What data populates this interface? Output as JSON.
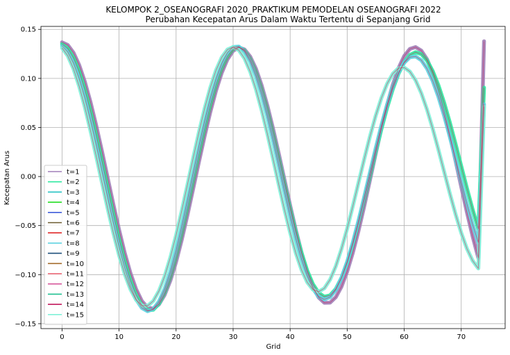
{
  "chart_data": {
    "type": "line",
    "title": "KELOMPOK 2_OSEANOGRAFI 2020_PRAKTIKUM PEMODELAN OSEANOGRAFI 2022",
    "subtitle": "Perubahan Kecepatan Arus Dalam Waktu Tertentu di Sepanjang Grid",
    "xlabel": "Grid",
    "ylabel": "Kecepatan Arus",
    "xlim": [
      -3.7,
      77.7
    ],
    "ylim": [
      -0.155,
      0.153
    ],
    "x_ticks": [
      0,
      10,
      20,
      30,
      40,
      50,
      60,
      70
    ],
    "x_tick_labels": [
      "0",
      "10",
      "20",
      "30",
      "40",
      "50",
      "60",
      "70"
    ],
    "y_ticks": [
      0.15,
      0.1,
      0.05,
      0.0,
      -0.05,
      -0.1,
      -0.15
    ],
    "y_tick_labels": [
      "0.15",
      "0.10",
      "0.05",
      "0.00",
      "−0.05",
      "−0.10",
      "−0.15"
    ],
    "grid": true,
    "legend_position": "lower-left",
    "x": [
      0,
      1,
      2,
      3,
      4,
      5,
      6,
      7,
      8,
      9,
      10,
      11,
      12,
      13,
      14,
      15,
      16,
      17,
      18,
      19,
      20,
      21,
      22,
      23,
      24,
      25,
      26,
      27,
      28,
      29,
      30,
      31,
      32,
      33,
      34,
      35,
      36,
      37,
      38,
      39,
      40,
      41,
      42,
      43,
      44,
      45,
      46,
      47,
      48,
      49,
      50,
      51,
      52,
      53,
      54,
      55,
      56,
      57,
      58,
      59,
      60,
      61,
      62,
      63,
      64,
      65,
      66,
      67,
      68,
      69,
      70,
      71,
      72,
      73,
      74
    ],
    "series": [
      {
        "name": "t=1",
        "color": "#a17fb8",
        "values": [
          0.1368,
          0.1341,
          0.1263,
          0.1137,
          0.0966,
          0.0757,
          0.0518,
          0.0258,
          -0.0013,
          -0.0284,
          -0.0543,
          -0.078,
          -0.0985,
          -0.115,
          -0.1269,
          -0.1335,
          -0.1347,
          -0.1303,
          -0.1206,
          -0.106,
          -0.087,
          -0.0643,
          -0.0391,
          -0.0123,
          0.0148,
          0.0411,
          0.0657,
          0.0875,
          0.1056,
          0.1193,
          0.1281,
          0.1315,
          0.1295,
          0.1222,
          0.1099,
          0.093,
          0.0724,
          0.0489,
          0.0234,
          -0.0031,
          -0.0295,
          -0.0547,
          -0.0776,
          -0.0972,
          -0.1126,
          -0.1233,
          -0.1287,
          -0.1285,
          -0.123,
          -0.1123,
          -0.0968,
          -0.0775,
          -0.055,
          -0.03,
          -0.0035,
          0.0233,
          0.0491,
          0.0728,
          0.0935,
          0.1104,
          0.1228,
          0.1301,
          0.1319,
          0.1283,
          0.1195,
          0.1058,
          0.0879,
          0.0664,
          0.0422,
          0.0162,
          -0.0104,
          -0.0365,
          -0.061,
          -0.083,
          0.1379
        ]
      },
      {
        "name": "t=2",
        "color": "#2ee8a0",
        "values": [
          0.1349,
          0.1305,
          0.1211,
          0.107,
          0.0887,
          0.0668,
          0.0421,
          0.0157,
          -0.0115,
          -0.0383,
          -0.0637,
          -0.0866,
          -0.106,
          -0.1212,
          -0.1315,
          -0.1364,
          -0.1358,
          -0.1297,
          -0.1183,
          -0.1021,
          -0.0817,
          -0.0579,
          -0.0318,
          -0.0045,
          0.0227,
          0.0487,
          0.0726,
          0.0934,
          0.1103,
          0.1226,
          0.1299,
          0.1319,
          0.1284,
          0.1197,
          0.1063,
          0.0886,
          0.0674,
          0.0436,
          0.0183,
          -0.0077,
          -0.0331,
          -0.0569,
          -0.0781,
          -0.096,
          -0.1097,
          -0.1186,
          -0.1225,
          -0.1211,
          -0.1146,
          -0.1033,
          -0.0878,
          -0.0689,
          -0.0473,
          -0.0238,
          0.0006,
          0.025,
          0.0484,
          0.07,
          0.089,
          0.1047,
          0.1165,
          0.1239,
          0.1267,
          0.1248,
          0.1183,
          0.1075,
          0.093,
          0.0753,
          0.0551,
          0.0333,
          0.0106,
          -0.012,
          -0.0336,
          -0.0535,
          0.0906
        ]
      },
      {
        "name": "t=8",
        "color": "#5fd2e0",
        "values": [
          0.133,
          0.1268,
          0.1155,
          0.0997,
          0.08,
          0.0571,
          0.0319,
          0.0054,
          -0.0214,
          -0.0475,
          -0.0719,
          -0.0936,
          -0.1117,
          -0.1253,
          -0.134,
          -0.1373,
          -0.135,
          -0.1273,
          -0.1145,
          -0.097,
          -0.0754,
          -0.0506,
          -0.0238,
          0.0038,
          0.031,
          0.0567,
          0.0799,
          0.0997,
          0.1154,
          0.1263,
          0.132,
          0.1324,
          0.1274,
          0.1173,
          0.1025,
          0.0837,
          0.0616,
          0.0371,
          0.0113,
          -0.0149,
          -0.0402,
          -0.0636,
          -0.0843,
          -0.1014,
          -0.1143,
          -0.1224,
          -0.1253,
          -0.1229,
          -0.1154,
          -0.1032,
          -0.0868,
          -0.067,
          -0.0446,
          -0.0205,
          0.0043,
          0.0288,
          0.0521,
          0.0732,
          0.0913,
          0.1058,
          0.116,
          0.1216,
          0.1224,
          0.1185,
          0.11,
          0.0974,
          0.0812,
          0.062,
          0.0405,
          0.0178,
          -0.0054,
          -0.028,
          -0.0489,
          -0.0673,
          0.0736
        ]
      },
      {
        "name": "t=15",
        "color": "#7ff0d8",
        "values": [
          0.131,
          0.123,
          0.1098,
          0.092,
          0.0706,
          0.0464,
          0.0204,
          -0.0063,
          -0.0326,
          -0.0576,
          -0.0802,
          -0.0996,
          -0.115,
          -0.1258,
          -0.1315,
          -0.1318,
          -0.1268,
          -0.1166,
          -0.1016,
          -0.0824,
          -0.0598,
          -0.0347,
          -0.0081,
          0.0189,
          0.045,
          0.0693,
          0.0907,
          0.1083,
          0.1214,
          0.1294,
          0.1319,
          0.1288,
          0.1203,
          0.1068,
          0.089,
          0.0676,
          0.0436,
          0.018,
          -0.0081,
          -0.0336,
          -0.0572,
          -0.0781,
          -0.0952,
          -0.1078,
          -0.1153,
          -0.1174,
          -0.1139,
          -0.1051,
          -0.0915,
          -0.0738,
          -0.053,
          -0.03,
          -0.006,
          0.018,
          0.041,
          0.0619,
          0.08,
          0.0945,
          0.1048,
          0.1104,
          0.1111,
          0.1069,
          0.098,
          0.0849,
          0.0682,
          0.0487,
          0.0273,
          0.005,
          -0.0172,
          -0.0383,
          -0.0574,
          -0.0735,
          -0.0858,
          -0.0937,
          0.0711
        ]
      }
    ],
    "legend": [
      {
        "label": "t=1",
        "color": "#a17fb8"
      },
      {
        "label": "t=2",
        "color": "#2ee8a0"
      },
      {
        "label": "t=3",
        "color": "#23c3c3"
      },
      {
        "label": "t=4",
        "color": "#22dd22"
      },
      {
        "label": "t=5",
        "color": "#3d5bd9"
      },
      {
        "label": "t=6",
        "color": "#6b5a2e"
      },
      {
        "label": "t=7",
        "color": "#e02828"
      },
      {
        "label": "t=8",
        "color": "#5fd2e0"
      },
      {
        "label": "t=9",
        "color": "#1b4f7a"
      },
      {
        "label": "t=10",
        "color": "#a36b2b"
      },
      {
        "label": "t=11",
        "color": "#e85a6a"
      },
      {
        "label": "t=12",
        "color": "#d6559a"
      },
      {
        "label": "t=13",
        "color": "#1fbf8f"
      },
      {
        "label": "t=14",
        "color": "#c2185b"
      },
      {
        "label": "t=15",
        "color": "#7ff0d8"
      }
    ]
  }
}
